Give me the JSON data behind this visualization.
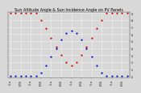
{
  "title": "Sun Altitude Angle & Sun Incidence Angle on PV Panels",
  "background_color": "#d8d8d8",
  "grid_color": "#ffffff",
  "blue_x": [
    0,
    1,
    2,
    3,
    4,
    5,
    6,
    7,
    8,
    9,
    10,
    11,
    12,
    13,
    14,
    15,
    16,
    17,
    18,
    19,
    20,
    21,
    22,
    23
  ],
  "blue_y": [
    0,
    0,
    0,
    0,
    0,
    0,
    5,
    15,
    28,
    40,
    52,
    61,
    65,
    61,
    52,
    40,
    28,
    15,
    5,
    0,
    0,
    0,
    0,
    0
  ],
  "red_x": [
    0,
    1,
    2,
    3,
    4,
    5,
    6,
    7,
    8,
    9,
    10,
    11,
    12,
    13,
    14,
    15,
    16,
    17,
    18,
    19,
    20,
    21,
    22,
    23
  ],
  "red_y": [
    90,
    90,
    90,
    90,
    90,
    90,
    80,
    68,
    55,
    42,
    30,
    20,
    16,
    20,
    30,
    42,
    55,
    68,
    80,
    90,
    90,
    90,
    90,
    90
  ],
  "ylim": [
    -2,
    92
  ],
  "xlim": [
    -0.5,
    23.5
  ],
  "yticks_right": [
    0,
    10,
    20,
    30,
    40,
    50,
    60,
    70,
    80,
    90
  ],
  "ytick_labels_right": [
    "0",
    "1.",
    "2.",
    "3.",
    "4.",
    "5.",
    "6.",
    "7.",
    "8.",
    "9."
  ],
  "xtick_positions": [
    0,
    2,
    4,
    6,
    8,
    10,
    12,
    14,
    16,
    18,
    20,
    22
  ],
  "xtick_labels": [
    "-5.a",
    "E-5S",
    "-5.a",
    "E-5S",
    "-5.a",
    "E-5S",
    "-5.a",
    "E-5S",
    "-5.a",
    "E-5S",
    "-5.a",
    "E-5S"
  ],
  "blue_color": "#0000cc",
  "red_color": "#cc0000",
  "dot_size": 1.5,
  "title_fontsize": 3.5,
  "tick_fontsize": 2.2
}
